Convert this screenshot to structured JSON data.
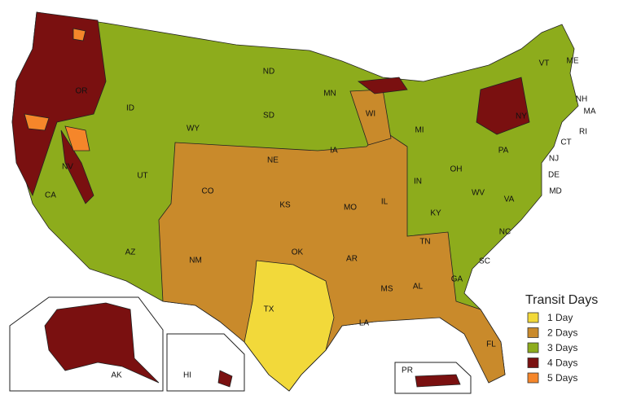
{
  "legend": {
    "title": "Transit Days",
    "items": [
      {
        "label": "1 Day",
        "color": "#f2d93a"
      },
      {
        "label": "2 Days",
        "color": "#c98a2b"
      },
      {
        "label": "3 Days",
        "color": "#8dac1c"
      },
      {
        "label": "4 Days",
        "color": "#7a1010"
      },
      {
        "label": "5 Days",
        "color": "#f5862a"
      }
    ]
  },
  "states": [
    "OR",
    "ND",
    "ID",
    "WY",
    "SD",
    "MN",
    "WI",
    "MI",
    "NY",
    "VT",
    "ME",
    "NH",
    "MA",
    "RI",
    "CT",
    "PA",
    "NJ",
    "DE",
    "MD",
    "IA",
    "NE",
    "NV",
    "UT",
    "CO",
    "KS",
    "IL",
    "IN",
    "OH",
    "WV",
    "VA",
    "KY",
    "MO",
    "CA",
    "TN",
    "NC",
    "AZ",
    "NM",
    "OK",
    "AR",
    "SC",
    "MS",
    "AL",
    "GA",
    "TX",
    "LA",
    "FL",
    "AK",
    "HI",
    "PR"
  ]
}
